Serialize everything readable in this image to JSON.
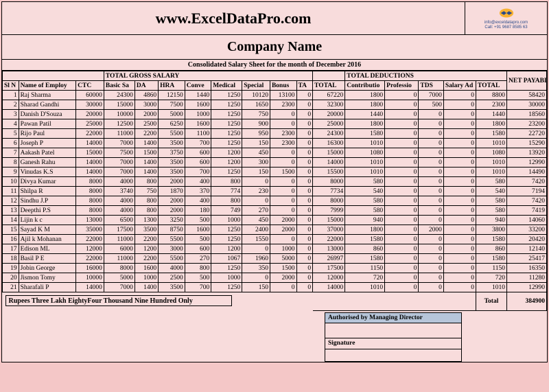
{
  "header": {
    "site_url": "www.ExcelDataPro.com",
    "logo_email": "info@exceldatapro.com",
    "logo_phone": "Call: +91 9687 8585 63",
    "company_name": "Company Name",
    "sheet_title": "Consolidated Salary Sheet for the month of  December 2016"
  },
  "group_headers": {
    "gross": "TOTAL GROSS SALARY",
    "deductions": "TOTAL DEDUCTIONS",
    "net": "NET PAYABLE"
  },
  "columns": {
    "sl": "Sl N",
    "name": "Name of Employ",
    "ctc": "CTC",
    "basic": "Basic Sa",
    "da": "DA",
    "hra": "HRA",
    "conve": "Conve",
    "medical": "Medical",
    "special": "Special",
    "bonus": "Bonus",
    "ta": "TA",
    "gtotal": "TOTAL",
    "contrib": "Contributio",
    "prof": "Professio",
    "tds": "TDS",
    "saladv": "Salary Ad",
    "dtotal": "TOTAL"
  },
  "rows": [
    {
      "sl": "1",
      "name": "Raj Sharma",
      "ctc": "60000",
      "basic": "24300",
      "da": "4860",
      "hra": "12150",
      "conve": "1440",
      "medical": "1250",
      "special": "10120",
      "bonus": "13100",
      "ta": "0",
      "gtotal": "67220",
      "contrib": "1800",
      "prof": "0",
      "tds": "7000",
      "saladv": "0",
      "dtotal": "8800",
      "net": "58420"
    },
    {
      "sl": "2",
      "name": "Sharad Gandhi",
      "ctc": "30000",
      "basic": "15000",
      "da": "3000",
      "hra": "7500",
      "conve": "1600",
      "medical": "1250",
      "special": "1650",
      "bonus": "2300",
      "ta": "0",
      "gtotal": "32300",
      "contrib": "1800",
      "prof": "0",
      "tds": "500",
      "saladv": "0",
      "dtotal": "2300",
      "net": "30000"
    },
    {
      "sl": "3",
      "name": "Danish D'Souza",
      "ctc": "20000",
      "basic": "10000",
      "da": "2000",
      "hra": "5000",
      "conve": "1000",
      "medical": "1250",
      "special": "750",
      "bonus": "0",
      "ta": "0",
      "gtotal": "20000",
      "contrib": "1440",
      "prof": "0",
      "tds": "0",
      "saladv": "0",
      "dtotal": "1440",
      "net": "18560"
    },
    {
      "sl": "4",
      "name": "Pawan Patil",
      "ctc": "25000",
      "basic": "12500",
      "da": "2500",
      "hra": "6250",
      "conve": "1600",
      "medical": "1250",
      "special": "900",
      "bonus": "0",
      "ta": "0",
      "gtotal": "25000",
      "contrib": "1800",
      "prof": "0",
      "tds": "0",
      "saladv": "0",
      "dtotal": "1800",
      "net": "23200"
    },
    {
      "sl": "5",
      "name": "Rijo Paul",
      "ctc": "22000",
      "basic": "11000",
      "da": "2200",
      "hra": "5500",
      "conve": "1100",
      "medical": "1250",
      "special": "950",
      "bonus": "2300",
      "ta": "0",
      "gtotal": "24300",
      "contrib": "1580",
      "prof": "0",
      "tds": "0",
      "saladv": "0",
      "dtotal": "1580",
      "net": "22720"
    },
    {
      "sl": "6",
      "name": "Joseph P",
      "ctc": "14000",
      "basic": "7000",
      "da": "1400",
      "hra": "3500",
      "conve": "700",
      "medical": "1250",
      "special": "150",
      "bonus": "2300",
      "ta": "0",
      "gtotal": "16300",
      "contrib": "1010",
      "prof": "0",
      "tds": "0",
      "saladv": "0",
      "dtotal": "1010",
      "net": "15290"
    },
    {
      "sl": "7",
      "name": "Aakash Patel",
      "ctc": "15000",
      "basic": "7500",
      "da": "1500",
      "hra": "3750",
      "conve": "600",
      "medical": "1200",
      "special": "450",
      "bonus": "0",
      "ta": "0",
      "gtotal": "15000",
      "contrib": "1080",
      "prof": "0",
      "tds": "0",
      "saladv": "0",
      "dtotal": "1080",
      "net": "13920"
    },
    {
      "sl": "8",
      "name": "Ganesh Rahu",
      "ctc": "14000",
      "basic": "7000",
      "da": "1400",
      "hra": "3500",
      "conve": "600",
      "medical": "1200",
      "special": "300",
      "bonus": "0",
      "ta": "0",
      "gtotal": "14000",
      "contrib": "1010",
      "prof": "0",
      "tds": "0",
      "saladv": "0",
      "dtotal": "1010",
      "net": "12990"
    },
    {
      "sl": "9",
      "name": "Vinudas K.S",
      "ctc": "14000",
      "basic": "7000",
      "da": "1400",
      "hra": "3500",
      "conve": "700",
      "medical": "1250",
      "special": "150",
      "bonus": "1500",
      "ta": "0",
      "gtotal": "15500",
      "contrib": "1010",
      "prof": "0",
      "tds": "0",
      "saladv": "0",
      "dtotal": "1010",
      "net": "14490"
    },
    {
      "sl": "10",
      "name": "Divya Kumar",
      "ctc": "8000",
      "basic": "4000",
      "da": "800",
      "hra": "2000",
      "conve": "400",
      "medical": "800",
      "special": "0",
      "bonus": "0",
      "ta": "0",
      "gtotal": "8000",
      "contrib": "580",
      "prof": "0",
      "tds": "0",
      "saladv": "0",
      "dtotal": "580",
      "net": "7420"
    },
    {
      "sl": "11",
      "name": "Shilpa R",
      "ctc": "8000",
      "basic": "3740",
      "da": "750",
      "hra": "1870",
      "conve": "370",
      "medical": "774",
      "special": "230",
      "bonus": "0",
      "ta": "0",
      "gtotal": "7734",
      "contrib": "540",
      "prof": "0",
      "tds": "0",
      "saladv": "0",
      "dtotal": "540",
      "net": "7194"
    },
    {
      "sl": "12",
      "name": "Sindhu J.P",
      "ctc": "8000",
      "basic": "4000",
      "da": "800",
      "hra": "2000",
      "conve": "400",
      "medical": "800",
      "special": "0",
      "bonus": "0",
      "ta": "0",
      "gtotal": "8000",
      "contrib": "580",
      "prof": "0",
      "tds": "0",
      "saladv": "0",
      "dtotal": "580",
      "net": "7420"
    },
    {
      "sl": "13",
      "name": "Deepthi P.S",
      "ctc": "8000",
      "basic": "4000",
      "da": "800",
      "hra": "2000",
      "conve": "180",
      "medical": "749",
      "special": "270",
      "bonus": "0",
      "ta": "0",
      "gtotal": "7999",
      "contrib": "580",
      "prof": "0",
      "tds": "0",
      "saladv": "0",
      "dtotal": "580",
      "net": "7419"
    },
    {
      "sl": "14",
      "name": "Lijin k c",
      "ctc": "13000",
      "basic": "6500",
      "da": "1300",
      "hra": "3250",
      "conve": "500",
      "medical": "1000",
      "special": "450",
      "bonus": "2000",
      "ta": "0",
      "gtotal": "15000",
      "contrib": "940",
      "prof": "0",
      "tds": "0",
      "saladv": "0",
      "dtotal": "940",
      "net": "14060"
    },
    {
      "sl": "15",
      "name": "Sayad K M",
      "ctc": "35000",
      "basic": "17500",
      "da": "3500",
      "hra": "8750",
      "conve": "1600",
      "medical": "1250",
      "special": "2400",
      "bonus": "2000",
      "ta": "0",
      "gtotal": "37000",
      "contrib": "1800",
      "prof": "0",
      "tds": "2000",
      "saladv": "0",
      "dtotal": "3800",
      "net": "33200"
    },
    {
      "sl": "16",
      "name": "Ajil k Mohanan",
      "ctc": "22000",
      "basic": "11000",
      "da": "2200",
      "hra": "5500",
      "conve": "500",
      "medical": "1250",
      "special": "1550",
      "bonus": "0",
      "ta": "0",
      "gtotal": "22000",
      "contrib": "1580",
      "prof": "0",
      "tds": "0",
      "saladv": "0",
      "dtotal": "1580",
      "net": "20420"
    },
    {
      "sl": "17",
      "name": "Edison ML",
      "ctc": "12000",
      "basic": "6000",
      "da": "1200",
      "hra": "3000",
      "conve": "600",
      "medical": "1200",
      "special": "0",
      "bonus": "1000",
      "ta": "0",
      "gtotal": "13000",
      "contrib": "860",
      "prof": "0",
      "tds": "0",
      "saladv": "0",
      "dtotal": "860",
      "net": "12140"
    },
    {
      "sl": "18",
      "name": "Basil P E",
      "ctc": "22000",
      "basic": "11000",
      "da": "2200",
      "hra": "5500",
      "conve": "270",
      "medical": "1067",
      "special": "1960",
      "bonus": "5000",
      "ta": "0",
      "gtotal": "26997",
      "contrib": "1580",
      "prof": "0",
      "tds": "0",
      "saladv": "0",
      "dtotal": "1580",
      "net": "25417"
    },
    {
      "sl": "19",
      "name": "Jobin George",
      "ctc": "16000",
      "basic": "8000",
      "da": "1600",
      "hra": "4000",
      "conve": "800",
      "medical": "1250",
      "special": "350",
      "bonus": "1500",
      "ta": "0",
      "gtotal": "17500",
      "contrib": "1150",
      "prof": "0",
      "tds": "0",
      "saladv": "0",
      "dtotal": "1150",
      "net": "16350"
    },
    {
      "sl": "20",
      "name": "Jismon Tomy",
      "ctc": "10000",
      "basic": "5000",
      "da": "1000",
      "hra": "2500",
      "conve": "500",
      "medical": "1000",
      "special": "0",
      "bonus": "2000",
      "ta": "0",
      "gtotal": "12000",
      "contrib": "720",
      "prof": "0",
      "tds": "0",
      "saladv": "0",
      "dtotal": "720",
      "net": "11280"
    },
    {
      "sl": "21",
      "name": "Sharafali P",
      "ctc": "14000",
      "basic": "7000",
      "da": "1400",
      "hra": "3500",
      "conve": "700",
      "medical": "1250",
      "special": "150",
      "bonus": "0",
      "ta": "0",
      "gtotal": "14000",
      "contrib": "1010",
      "prof": "0",
      "tds": "0",
      "saladv": "0",
      "dtotal": "1010",
      "net": "12990"
    }
  ],
  "footer": {
    "words": "Rupees Three Lakh EightyFour Thousand Nine Hundred  Only",
    "total_label": "Total",
    "total_value": "384900",
    "auth_label": "Authorised by Managing Director",
    "sign_label": "Signature"
  },
  "colors": {
    "page_bg": "#f8dcdc",
    "auth_bg": "#b7c5d9"
  }
}
